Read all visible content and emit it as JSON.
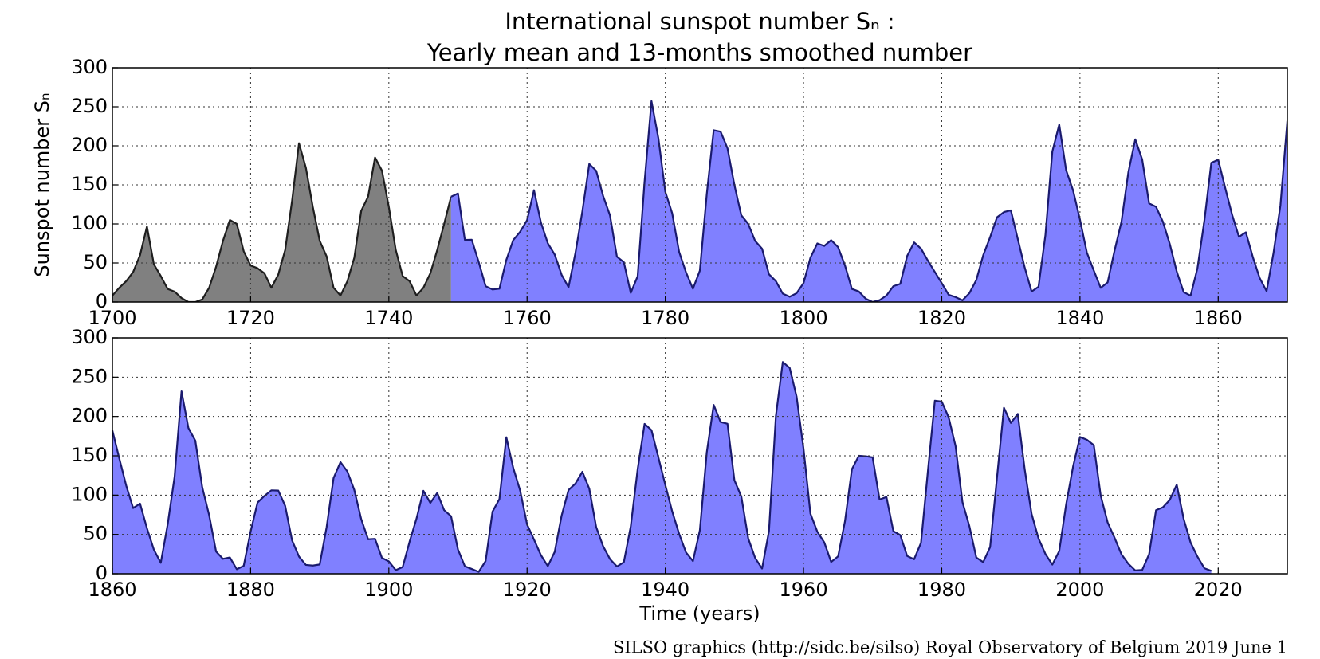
{
  "credit": "SILSO graphics (http://sidc.be/silso)  Royal Observatory of Belgium  2019 June 1",
  "chart_data": [
    {
      "type": "area",
      "title": "International sunspot number Sₙ :",
      "subtitle": "Yearly mean and 13-months smoothed number",
      "ylabel": "Sunspot number Sₙ",
      "xlim": [
        1700,
        1870
      ],
      "xticks": [
        1700,
        1720,
        1740,
        1760,
        1780,
        1800,
        1820,
        1840,
        1860
      ],
      "ylim": [
        0,
        300
      ],
      "yticks": [
        0,
        50,
        100,
        150,
        200,
        250,
        300
      ],
      "grid": true,
      "series": [
        {
          "color": "#808080",
          "line_color": "#1e1e1e",
          "x": [
            1700,
            1701,
            1702,
            1703,
            1704,
            1705,
            1706,
            1707,
            1708,
            1709,
            1710,
            1711,
            1712,
            1713,
            1714,
            1715,
            1716,
            1717,
            1718,
            1719,
            1720,
            1721,
            1722,
            1723,
            1724,
            1725,
            1726,
            1727,
            1728,
            1729,
            1730,
            1731,
            1732,
            1733,
            1734,
            1735,
            1736,
            1737,
            1738,
            1739,
            1740,
            1741,
            1742,
            1743,
            1744,
            1745,
            1746,
            1747,
            1748,
            1749
          ],
          "values": [
            8.3,
            18.3,
            26.7,
            38.3,
            60,
            96.7,
            48.3,
            33.3,
            16.7,
            13.3,
            5,
            0,
            0,
            3.3,
            18.3,
            45,
            78.3,
            105,
            100,
            65,
            46.7,
            43.3,
            36.7,
            18.3,
            35,
            66.7,
            130,
            203.3,
            171.7,
            121.7,
            78.3,
            58.3,
            18.3,
            8.3,
            26.7,
            56.7,
            116.7,
            135,
            185,
            168.3,
            121.7,
            66.7,
            33.3,
            26.7,
            8.3,
            18.3,
            36.7,
            66.7,
            100,
            134.8
          ]
        },
        {
          "color": "#8080ff",
          "line_color": "#1a1a6e",
          "x": [
            1749,
            1750,
            1751,
            1752,
            1753,
            1754,
            1755,
            1756,
            1757,
            1758,
            1759,
            1760,
            1761,
            1762,
            1763,
            1764,
            1765,
            1766,
            1767,
            1768,
            1769,
            1770,
            1771,
            1772,
            1773,
            1774,
            1775,
            1776,
            1777,
            1778,
            1779,
            1780,
            1781,
            1782,
            1783,
            1784,
            1785,
            1786,
            1787,
            1788,
            1789,
            1790,
            1791,
            1792,
            1793,
            1794,
            1795,
            1796,
            1797,
            1798,
            1799,
            1800,
            1801,
            1802,
            1803,
            1804,
            1805,
            1806,
            1807,
            1808,
            1809,
            1810,
            1811,
            1812,
            1813,
            1814,
            1815,
            1816,
            1817,
            1818,
            1819,
            1820,
            1821,
            1822,
            1823,
            1824,
            1825,
            1826,
            1827,
            1828,
            1829,
            1830,
            1831,
            1832,
            1833,
            1834,
            1835,
            1836,
            1837,
            1838,
            1839,
            1840,
            1841,
            1842,
            1843,
            1844,
            1845,
            1846,
            1847,
            1848,
            1849,
            1850,
            1851,
            1852,
            1853,
            1854,
            1855,
            1856,
            1857,
            1858,
            1859,
            1860,
            1861,
            1862,
            1863,
            1864,
            1865,
            1866,
            1867,
            1868,
            1869,
            1870
          ],
          "values": [
            134.8,
            139.0,
            79.5,
            79.7,
            51.2,
            20.3,
            16.0,
            17.0,
            54.0,
            79.3,
            90.0,
            104.8,
            143.2,
            102.0,
            75.2,
            60.7,
            34.8,
            19.0,
            63.0,
            116.3,
            176.8,
            168.0,
            136.0,
            110.8,
            58.0,
            51.0,
            11.7,
            33.0,
            154.2,
            257.3,
            209.8,
            141.3,
            113.5,
            64.2,
            38.0,
            17.0,
            40.2,
            138.2,
            220.0,
            218.2,
            196.8,
            149.8,
            111.0,
            100.0,
            78.2,
            68.3,
            35.5,
            26.7,
            10.7,
            6.8,
            11.3,
            24.2,
            56.7,
            75.0,
            71.8,
            79.2,
            70.3,
            46.8,
            16.8,
            13.5,
            4.2,
            0.0,
            2.3,
            8.3,
            20.3,
            23.2,
            59.0,
            76.3,
            68.3,
            52.9,
            38.5,
            24.2,
            9.2,
            6.3,
            2.2,
            11.4,
            28.2,
            59.9,
            83.0,
            108.5,
            115.2,
            117.4,
            80.8,
            44.3,
            13.4,
            19.5,
            85.8,
            192.7,
            227.3,
            168.7,
            143.0,
            105.5,
            63.3,
            40.3,
            18.1,
            25.1,
            65.8,
            102.7,
            166.3,
            208.3,
            182.5,
            126.3,
            122.0,
            102.7,
            74.1,
            39.0,
            12.7,
            8.2,
            43.4,
            104.4,
            178.3,
            182.2,
            146.6,
            112.1,
            83.5,
            89.2,
            57.8,
            30.7,
            13.9,
            62.8,
            123.6,
            232.0
          ]
        }
      ]
    },
    {
      "type": "area",
      "xlabel": "Time (years)",
      "xlim": [
        1860,
        2030
      ],
      "xticks": [
        1860,
        1880,
        1900,
        1920,
        1940,
        1960,
        1980,
        2000,
        2020
      ],
      "ylim": [
        0,
        300
      ],
      "yticks": [
        0,
        50,
        100,
        150,
        200,
        250,
        300
      ],
      "grid": true,
      "series": [
        {
          "color": "#8080ff",
          "line_color": "#1a1a6e",
          "x": [
            1860,
            1861,
            1862,
            1863,
            1864,
            1865,
            1866,
            1867,
            1868,
            1869,
            1870,
            1871,
            1872,
            1873,
            1874,
            1875,
            1876,
            1877,
            1878,
            1879,
            1880,
            1881,
            1882,
            1883,
            1884,
            1885,
            1886,
            1887,
            1888,
            1889,
            1890,
            1891,
            1892,
            1893,
            1894,
            1895,
            1896,
            1897,
            1898,
            1899,
            1900,
            1901,
            1902,
            1903,
            1904,
            1905,
            1906,
            1907,
            1908,
            1909,
            1910,
            1911,
            1912,
            1913,
            1914,
            1915,
            1916,
            1917,
            1918,
            1919,
            1920,
            1921,
            1922,
            1923,
            1924,
            1925,
            1926,
            1927,
            1928,
            1929,
            1930,
            1931,
            1932,
            1933,
            1934,
            1935,
            1936,
            1937,
            1938,
            1939,
            1940,
            1941,
            1942,
            1943,
            1944,
            1945,
            1946,
            1947,
            1948,
            1949,
            1950,
            1951,
            1952,
            1953,
            1954,
            1955,
            1956,
            1957,
            1958,
            1959,
            1960,
            1961,
            1962,
            1963,
            1964,
            1965,
            1966,
            1967,
            1968,
            1969,
            1970,
            1971,
            1972,
            1973,
            1974,
            1975,
            1976,
            1977,
            1978,
            1979,
            1980,
            1981,
            1982,
            1983,
            1984,
            1985,
            1986,
            1987,
            1988,
            1989,
            1990,
            1991,
            1992,
            1993,
            1994,
            1995,
            1996,
            1997,
            1998,
            1999,
            2000,
            2001,
            2002,
            2003,
            2004,
            2005,
            2006,
            2007,
            2008,
            2009,
            2010,
            2011,
            2012,
            2013,
            2014,
            2015,
            2016,
            2017,
            2018,
            2019
          ],
          "values": [
            182.2,
            146.6,
            112.1,
            83.5,
            89.2,
            57.8,
            30.7,
            13.9,
            62.8,
            123.6,
            232.0,
            185.3,
            169.2,
            110.1,
            74.5,
            28.3,
            18.9,
            20.7,
            5.7,
            10.0,
            53.7,
            90.5,
            99.0,
            106.1,
            105.8,
            86.3,
            42.4,
            21.8,
            11.2,
            10.4,
            11.8,
            59.5,
            121.7,
            142.0,
            130.0,
            106.6,
            69.4,
            43.8,
            44.4,
            20.2,
            15.7,
            4.6,
            8.5,
            40.8,
            70.1,
            105.5,
            90.1,
            102.8,
            80.9,
            73.2,
            30.9,
            9.5,
            6.0,
            2.4,
            16.1,
            79.0,
            95.0,
            173.6,
            134.6,
            105.7,
            62.7,
            43.5,
            23.7,
            9.7,
            27.9,
            74.0,
            106.5,
            114.7,
            129.7,
            108.2,
            59.4,
            35.1,
            18.6,
            9.2,
            14.6,
            60.2,
            132.8,
            190.6,
            182.6,
            148.0,
            113.0,
            79.2,
            50.8,
            27.1,
            16.1,
            55.3,
            154.3,
            214.7,
            193.0,
            190.7,
            118.9,
            98.3,
            45.0,
            20.1,
            6.6,
            54.2,
            200.7,
            269.3,
            261.7,
            225.1,
            159.0,
            76.4,
            53.4,
            39.9,
            15.0,
            22.0,
            66.8,
            132.9,
            150.0,
            149.4,
            148.0,
            94.4,
            97.6,
            54.1,
            49.2,
            22.5,
            18.4,
            39.3,
            131.0,
            220.1,
            218.9,
            198.9,
            162.4,
            91.0,
            60.5,
            20.6,
            14.8,
            33.9,
            123.0,
            211.1,
            191.8,
            203.3,
            133.0,
            76.1,
            44.9,
            25.1,
            11.6,
            28.9,
            88.3,
            136.3,
            173.9,
            170.4,
            163.6,
            99.3,
            65.3,
            45.8,
            24.7,
            12.6,
            4.2,
            4.8,
            24.9,
            80.8,
            84.5,
            94.0,
            113.3,
            69.8,
            39.8,
            21.7,
            7.0,
            3.6
          ]
        }
      ]
    }
  ]
}
